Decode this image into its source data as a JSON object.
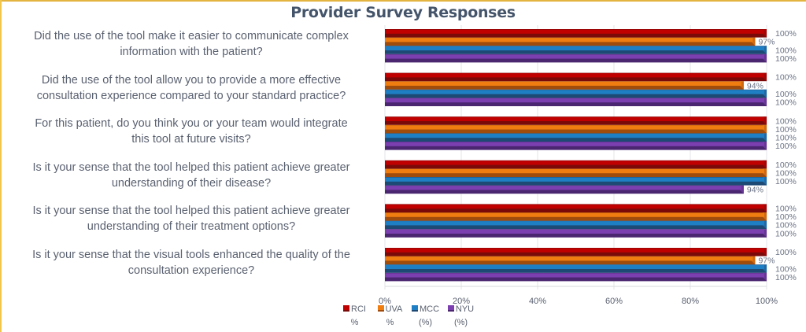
{
  "chart_data": {
    "type": "bar",
    "orientation": "horizontal",
    "title": "Provider Survey Responses",
    "xlabel": "",
    "ylabel": "",
    "xlim": [
      0,
      100
    ],
    "xticks": [
      "0%",
      "20%",
      "40%",
      "60%",
      "80%",
      "100%"
    ],
    "grid": true,
    "legend_position": "bottom-left",
    "categories": [
      "Did the use of the tool make it easier to communicate complex information with the patient?",
      "Did the use of the tool allow you to provide a more effective consultation experience compared to your standard practice?",
      "For this patient, do you think you or your team would integrate this tool at future visits?",
      "Is it your sense that the tool helped this patient achieve greater understanding of their disease?",
      "Is it your sense that the tool helped this patient achieve greater understanding of their treatment options?",
      "Is it your sense that the visual tools enhanced the quality of the consultation experience?"
    ],
    "category_lines": [
      [
        "Did the use of the tool make it easier to communicate complex",
        "information with the patient?"
      ],
      [
        "Did the use of the tool allow you to provide a more effective",
        "consultation experience compared to your standard practice?"
      ],
      [
        "For this patient, do you think you or your team would integrate",
        "this tool at future visits?"
      ],
      [
        "Is it your sense that the tool helped this patient achieve greater",
        "understanding of their disease?"
      ],
      [
        "Is it your sense that the tool helped this patient achieve greater",
        "understanding of their treatment options?"
      ],
      [
        "Is it your sense that the visual tools enhanced the quality of the",
        "consultation experience?"
      ]
    ],
    "series": [
      {
        "name": "RCI %",
        "legend_lines": [
          "RCI",
          "%"
        ],
        "color": "#c00000",
        "dark": "#7a0a0a",
        "values": [
          100,
          100,
          100,
          100,
          100,
          100
        ]
      },
      {
        "name": "UVA %",
        "legend_lines": [
          "UVA",
          "%"
        ],
        "color": "#f07d10",
        "dark": "#a04c0c",
        "values": [
          97,
          94,
          100,
          100,
          100,
          97
        ]
      },
      {
        "name": "MCC (%)",
        "legend_lines": [
          "MCC",
          "(%)"
        ],
        "color": "#1f7fc4",
        "dark": "#1d4a75",
        "values": [
          100,
          100,
          100,
          100,
          100,
          100
        ]
      },
      {
        "name": "NYU (%)",
        "legend_lines": [
          "NYU",
          "(%)"
        ],
        "color": "#7b3fb0",
        "dark": "#4a2670",
        "values": [
          100,
          100,
          100,
          94,
          100,
          100
        ]
      }
    ],
    "data_label_format": "{v}%"
  }
}
